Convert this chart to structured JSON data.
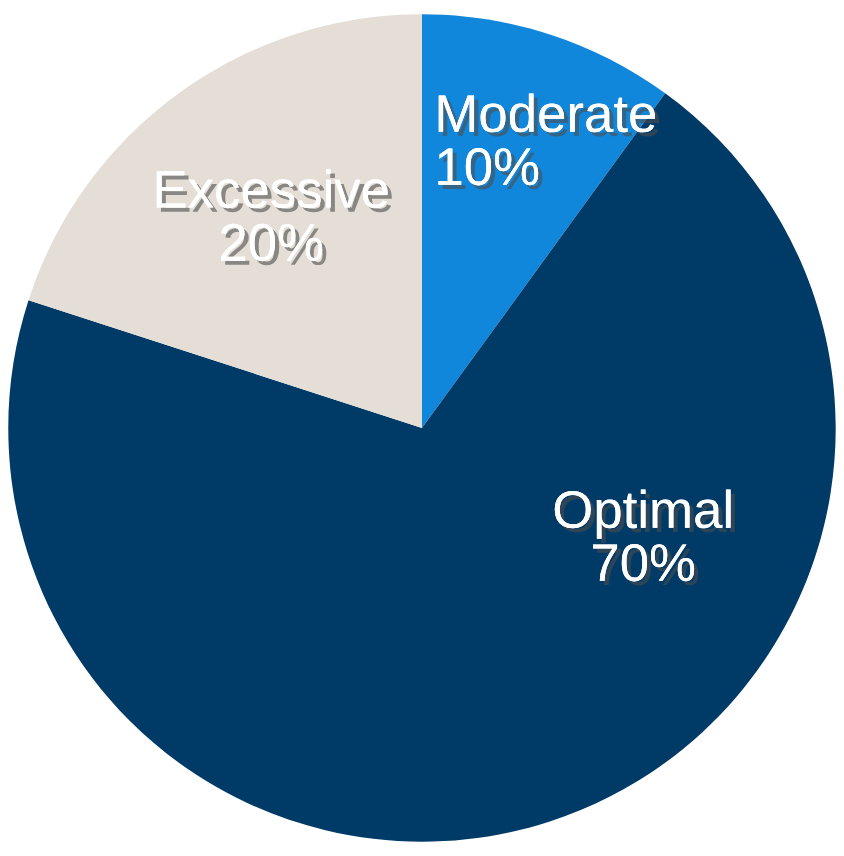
{
  "chart_data": {
    "type": "pie",
    "categories": [
      "Moderate",
      "Optimal",
      "Excessive"
    ],
    "values": [
      10,
      70,
      20
    ],
    "colors": [
      "#1187dc",
      "#003b68",
      "#e4ded6"
    ],
    "value_labels": [
      "10%",
      "70%",
      "20%"
    ],
    "legend": false
  }
}
